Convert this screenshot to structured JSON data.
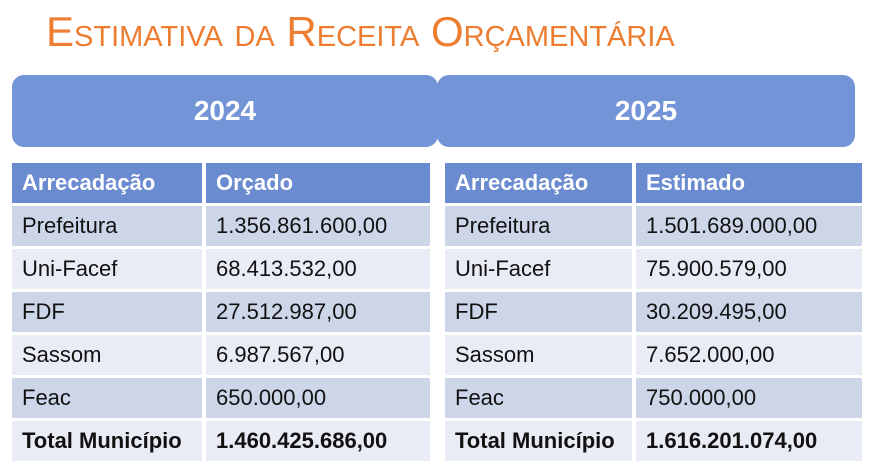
{
  "title": "Estimativa da Receita Orçamentária",
  "colors": {
    "title_orange": "#ED7D31",
    "bar_blue": "#7394D7",
    "header_blue": "#6B8BD0",
    "row_dark": "#CDD5E9",
    "row_light": "#E9EBF5"
  },
  "year_tabs": [
    {
      "label": "2024"
    },
    {
      "label": "2025"
    }
  ],
  "tables": [
    {
      "year": "2024",
      "columns": [
        "Arrecadação",
        "Orçado"
      ],
      "rows": [
        {
          "label": "Prefeitura",
          "value": "1.356.861.600,00"
        },
        {
          "label": "Uni-Facef",
          "value": "68.413.532,00"
        },
        {
          "label": "FDF",
          "value": "27.512.987,00"
        },
        {
          "label": "Sassom",
          "value": "6.987.567,00"
        },
        {
          "label": "Feac",
          "value": "650.000,00"
        }
      ],
      "total": {
        "label": "Total Município",
        "value": "1.460.425.686,00"
      }
    },
    {
      "year": "2025",
      "columns": [
        "Arrecadação",
        "Estimado"
      ],
      "rows": [
        {
          "label": "Prefeitura",
          "value": "1.501.689.000,00"
        },
        {
          "label": "Uni-Facef",
          "value": "75.900.579,00"
        },
        {
          "label": "FDF",
          "value": "30.209.495,00"
        },
        {
          "label": "Sassom",
          "value": "7.652.000,00"
        },
        {
          "label": "Feac",
          "value": "750.000,00"
        }
      ],
      "total": {
        "label": "Total Município",
        "value": "1.616.201.074,00"
      }
    }
  ]
}
